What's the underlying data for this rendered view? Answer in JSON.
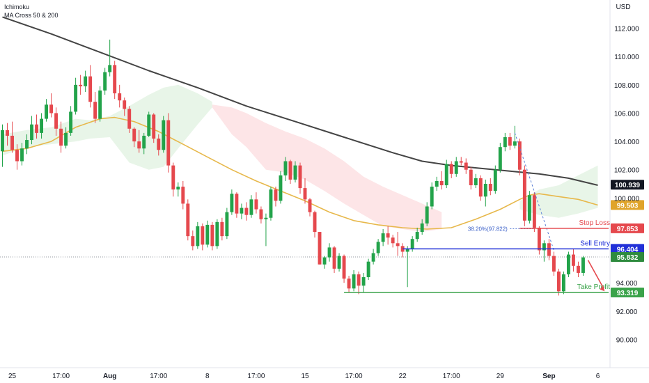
{
  "indicators": [
    "Ichimoku",
    "MA Cross 50 & 200"
  ],
  "chart_data": {
    "type": "candlestick",
    "currency": "USD",
    "ylim": [
      88.0,
      114.0
    ],
    "y_ticks": [
      "112.000",
      "110.000",
      "108.000",
      "106.000",
      "104.000",
      "102.000",
      "100.000",
      "94.000",
      "92.000",
      "90.000"
    ],
    "x_ticks": [
      {
        "label": "25",
        "bar": 2,
        "bold": false
      },
      {
        "label": "17:00",
        "bar": 12,
        "bold": false
      },
      {
        "label": "Aug",
        "bar": 22,
        "bold": true
      },
      {
        "label": "17:00",
        "bar": 32,
        "bold": false
      },
      {
        "label": "8",
        "bar": 42,
        "bold": false
      },
      {
        "label": "17:00",
        "bar": 52,
        "bold": false
      },
      {
        "label": "15",
        "bar": 62,
        "bold": false
      },
      {
        "label": "17:00",
        "bar": 72,
        "bold": false
      },
      {
        "label": "22",
        "bar": 82,
        "bold": false
      },
      {
        "label": "17:00",
        "bar": 92,
        "bold": false
      },
      {
        "label": "29",
        "bar": 102,
        "bold": false
      },
      {
        "label": "Sep",
        "bar": 112,
        "bold": true
      },
      {
        "label": "6",
        "bar": 122,
        "bold": false
      }
    ],
    "bar_count": 125,
    "candles": [
      [
        103.3,
        105.2,
        102.2,
        104.8
      ],
      [
        104.8,
        105.3,
        103.7,
        104.4
      ],
      [
        104.4,
        105.4,
        103.2,
        103.4
      ],
      [
        103.4,
        103.8,
        102.0,
        102.6
      ],
      [
        102.6,
        103.9,
        102.3,
        103.5
      ],
      [
        103.5,
        104.5,
        103.1,
        104.1
      ],
      [
        104.1,
        105.8,
        103.8,
        105.2
      ],
      [
        105.2,
        105.9,
        104.2,
        104.6
      ],
      [
        104.6,
        106.0,
        104.2,
        105.6
      ],
      [
        105.6,
        107.0,
        105.4,
        106.6
      ],
      [
        106.6,
        107.4,
        105.7,
        106.0
      ],
      [
        106.0,
        106.4,
        104.4,
        104.9
      ],
      [
        104.9,
        105.4,
        103.2,
        103.7
      ],
      [
        103.7,
        105.0,
        103.5,
        104.6
      ],
      [
        104.6,
        106.5,
        104.4,
        106.1
      ],
      [
        106.1,
        108.5,
        105.9,
        108.0
      ],
      [
        108.0,
        108.7,
        107.3,
        107.9
      ],
      [
        107.9,
        109.0,
        107.5,
        108.6
      ],
      [
        108.6,
        109.4,
        106.4,
        106.8
      ],
      [
        106.8,
        107.5,
        105.3,
        105.6
      ],
      [
        105.6,
        107.9,
        105.4,
        107.6
      ],
      [
        107.6,
        109.2,
        107.3,
        108.9
      ],
      [
        108.9,
        111.2,
        108.6,
        109.4
      ],
      [
        109.4,
        109.7,
        107.0,
        107.4
      ],
      [
        107.4,
        108.0,
        106.4,
        106.9
      ],
      [
        106.9,
        107.1,
        105.8,
        106.3
      ],
      [
        106.3,
        106.5,
        104.6,
        104.9
      ],
      [
        104.9,
        105.0,
        103.6,
        104.0
      ],
      [
        104.0,
        104.8,
        103.2,
        103.5
      ],
      [
        103.5,
        104.6,
        103.1,
        104.4
      ],
      [
        104.4,
        106.1,
        104.3,
        105.9
      ],
      [
        105.9,
        106.0,
        103.9,
        104.2
      ],
      [
        104.2,
        104.5,
        103.0,
        103.4
      ],
      [
        103.4,
        105.8,
        103.2,
        105.5
      ],
      [
        105.5,
        106.0,
        101.8,
        102.3
      ],
      [
        102.3,
        102.5,
        100.1,
        100.6
      ],
      [
        100.6,
        101.1,
        100.1,
        100.8
      ],
      [
        100.8,
        101.2,
        99.2,
        99.6
      ],
      [
        99.6,
        99.9,
        97.0,
        97.3
      ],
      [
        97.3,
        97.7,
        96.3,
        96.6
      ],
      [
        96.6,
        98.3,
        96.4,
        98.0
      ],
      [
        98.0,
        98.2,
        96.3,
        96.7
      ],
      [
        96.7,
        98.4,
        96.5,
        98.1
      ],
      [
        98.1,
        98.3,
        96.3,
        96.6
      ],
      [
        96.6,
        98.5,
        96.4,
        98.3
      ],
      [
        98.3,
        98.6,
        97.0,
        97.3
      ],
      [
        97.3,
        99.3,
        97.1,
        99.0
      ],
      [
        99.0,
        100.6,
        98.8,
        100.3
      ],
      [
        100.3,
        100.4,
        98.6,
        98.9
      ],
      [
        98.9,
        99.6,
        98.5,
        99.3
      ],
      [
        99.3,
        99.7,
        98.4,
        98.8
      ],
      [
        98.8,
        100.2,
        98.6,
        99.9
      ],
      [
        99.9,
        100.4,
        98.9,
        99.2
      ],
      [
        99.2,
        99.4,
        98.2,
        98.5
      ],
      [
        98.5,
        98.9,
        96.6,
        98.6
      ],
      [
        98.6,
        100.8,
        98.4,
        100.6
      ],
      [
        100.6,
        100.8,
        99.4,
        99.8
      ],
      [
        99.8,
        101.9,
        99.6,
        101.6
      ],
      [
        101.6,
        102.9,
        101.2,
        102.6
      ],
      [
        102.6,
        102.7,
        101.0,
        101.3
      ],
      [
        101.3,
        102.6,
        101.1,
        102.3
      ],
      [
        102.3,
        102.5,
        100.3,
        100.7
      ],
      [
        100.7,
        101.4,
        99.6,
        99.9
      ],
      [
        99.9,
        100.0,
        98.7,
        99.0
      ],
      [
        99.0,
        99.1,
        97.2,
        97.6
      ],
      [
        97.6,
        97.6,
        95.3,
        95.3
      ],
      [
        95.3,
        95.9,
        95.0,
        95.8
      ],
      [
        95.8,
        96.8,
        95.5,
        96.5
      ],
      [
        96.5,
        96.6,
        94.7,
        95.0
      ],
      [
        95.0,
        96.1,
        94.8,
        95.9
      ],
      [
        95.9,
        96.0,
        94.0,
        94.3
      ],
      [
        94.3,
        94.5,
        93.3,
        93.6
      ],
      [
        93.6,
        94.9,
        93.4,
        94.6
      ],
      [
        94.6,
        94.8,
        93.2,
        93.8
      ],
      [
        93.8,
        94.7,
        93.3,
        94.4
      ],
      [
        94.4,
        95.7,
        94.2,
        95.5
      ],
      [
        95.5,
        96.4,
        95.3,
        96.1
      ],
      [
        96.1,
        97.1,
        95.9,
        96.9
      ],
      [
        96.9,
        97.8,
        96.6,
        97.5
      ],
      [
        97.5,
        98.0,
        96.7,
        97.2
      ],
      [
        97.2,
        97.4,
        96.5,
        96.8
      ],
      [
        96.8,
        97.6,
        95.9,
        96.6
      ],
      [
        96.6,
        96.8,
        95.8,
        96.2
      ],
      [
        96.2,
        96.6,
        93.7,
        96.4
      ],
      [
        96.4,
        97.3,
        96.2,
        97.1
      ],
      [
        97.1,
        97.9,
        96.9,
        97.6
      ],
      [
        97.6,
        98.5,
        97.4,
        98.2
      ],
      [
        98.2,
        99.7,
        98.0,
        99.4
      ],
      [
        99.4,
        101.1,
        99.2,
        100.8
      ],
      [
        100.8,
        101.5,
        100.5,
        101.2
      ],
      [
        101.2,
        101.9,
        100.6,
        100.9
      ],
      [
        100.9,
        102.7,
        100.7,
        102.4
      ],
      [
        102.4,
        102.6,
        101.4,
        101.7
      ],
      [
        101.7,
        102.9,
        101.5,
        102.6
      ],
      [
        102.6,
        102.9,
        102.3,
        102.5
      ],
      [
        102.5,
        102.8,
        101.7,
        102.0
      ],
      [
        102.0,
        102.2,
        100.6,
        100.9
      ],
      [
        100.9,
        101.7,
        100.7,
        101.4
      ],
      [
        101.4,
        101.6,
        99.8,
        100.1
      ],
      [
        100.1,
        101.3,
        99.4,
        101.0
      ],
      [
        101.0,
        101.4,
        100.2,
        100.5
      ],
      [
        100.5,
        102.3,
        100.3,
        102.0
      ],
      [
        102.0,
        103.9,
        101.8,
        103.6
      ],
      [
        103.6,
        104.6,
        103.3,
        104.3
      ],
      [
        104.3,
        104.6,
        103.4,
        103.7
      ],
      [
        103.7,
        105.1,
        103.5,
        104.0
      ],
      [
        104.0,
        104.2,
        101.6,
        102.0
      ],
      [
        102.0,
        102.3,
        98.0,
        98.4
      ],
      [
        98.4,
        100.5,
        98.2,
        100.2
      ],
      [
        100.2,
        100.4,
        97.6,
        97.9
      ],
      [
        97.9,
        98.0,
        96.0,
        96.3
      ],
      [
        96.3,
        97.0,
        95.5,
        96.8
      ],
      [
        96.8,
        97.1,
        95.6,
        95.9
      ],
      [
        95.9,
        96.2,
        94.5,
        94.8
      ],
      [
        94.8,
        95.0,
        93.1,
        93.4
      ],
      [
        93.4,
        94.8,
        93.2,
        94.6
      ],
      [
        94.6,
        96.2,
        94.4,
        96.0
      ],
      [
        96.0,
        96.4,
        94.8,
        95.2
      ],
      [
        95.2,
        95.5,
        94.4,
        94.7
      ],
      [
        94.7,
        95.9,
        94.5,
        95.8
      ]
    ],
    "ma50": [
      [
        0,
        103.3
      ],
      [
        5,
        103.5
      ],
      [
        10,
        104.0
      ],
      [
        15,
        105.0
      ],
      [
        20,
        105.6
      ],
      [
        23,
        105.7
      ],
      [
        27,
        105.4
      ],
      [
        32,
        104.7
      ],
      [
        37,
        103.8
      ],
      [
        42,
        102.9
      ],
      [
        47,
        102.0
      ],
      [
        52,
        101.2
      ],
      [
        57,
        100.5
      ],
      [
        62,
        99.8
      ],
      [
        67,
        99.0
      ],
      [
        72,
        98.4
      ],
      [
        77,
        98.1
      ],
      [
        82,
        97.9
      ],
      [
        87,
        97.8
      ],
      [
        92,
        97.9
      ],
      [
        97,
        98.5
      ],
      [
        102,
        99.2
      ],
      [
        106,
        99.9
      ],
      [
        108,
        100.2
      ],
      [
        110,
        100.3
      ],
      [
        114,
        100.1
      ],
      [
        118,
        99.9
      ],
      [
        122,
        99.5
      ]
    ],
    "ma200": [
      [
        0,
        112.8
      ],
      [
        10,
        111.6
      ],
      [
        20,
        110.3
      ],
      [
        30,
        109.0
      ],
      [
        40,
        107.8
      ],
      [
        50,
        106.5
      ],
      [
        60,
        105.4
      ],
      [
        70,
        104.3
      ],
      [
        80,
        103.2
      ],
      [
        86,
        102.6
      ],
      [
        92,
        102.3
      ],
      [
        98,
        102.1
      ],
      [
        104,
        101.9
      ],
      [
        110,
        101.7
      ],
      [
        116,
        101.4
      ],
      [
        122,
        100.9
      ]
    ],
    "cloud_green": [
      [
        0,
        104.5,
        103.0
      ],
      [
        5,
        104.8,
        103.6
      ],
      [
        10,
        105.0,
        103.8
      ],
      [
        15,
        105.6,
        104.0
      ],
      [
        18,
        105.5,
        104.2
      ],
      [
        22,
        105.8,
        104.3
      ],
      [
        26,
        106.5,
        102.5
      ],
      [
        30,
        107.3,
        102.0
      ],
      [
        33,
        107.8,
        102.2
      ],
      [
        36,
        108.0,
        103.5
      ],
      [
        40,
        107.4,
        105.2
      ],
      [
        43,
        106.8,
        106.4
      ]
    ],
    "cloud_red": [
      [
        43,
        106.6,
        106.4
      ],
      [
        47,
        106.4,
        104.5
      ],
      [
        50,
        106.0,
        103.6
      ],
      [
        54,
        105.3,
        102.0
      ],
      [
        58,
        104.7,
        101.8
      ],
      [
        62,
        104.2,
        101.3
      ],
      [
        66,
        103.5,
        100.5
      ],
      [
        70,
        102.6,
        99.6
      ],
      [
        74,
        101.5,
        98.8
      ],
      [
        78,
        100.8,
        98.0
      ],
      [
        82,
        100.2,
        97.8
      ],
      [
        86,
        99.6,
        97.6
      ],
      [
        90,
        99.0,
        97.8
      ]
    ],
    "cloud_green_right": [
      [
        106,
        99.8,
        99.2
      ],
      [
        110,
        100.6,
        98.8
      ],
      [
        114,
        100.9,
        98.6
      ],
      [
        118,
        101.6,
        98.9
      ],
      [
        122,
        102.3,
        99.3
      ]
    ],
    "fib_label": "38.20%(97.822)",
    "fib_value": 97.822,
    "levels": [
      {
        "name": "Stop Loss",
        "value": 97.853,
        "label": "97.853",
        "color": "#e5484d"
      },
      {
        "name": "Sell Entry",
        "value": 96.404,
        "label": "96.404",
        "color": "#2130d8"
      },
      {
        "name": "Take Profit",
        "value": 93.319,
        "label": "93.319",
        "color": "#3aa34a"
      }
    ],
    "price_labels": [
      {
        "value": 100.939,
        "label": "100.939",
        "bg": "#131722"
      },
      {
        "value": 99.503,
        "label": "99.503",
        "bg": "#e0a42a"
      },
      {
        "value": 95.832,
        "label": "95.832",
        "bg": "#2e8b3e"
      }
    ],
    "last_price": 95.832,
    "colors": {
      "up": "#22a34a",
      "down": "#e5484d",
      "ma50": "#e7b84b",
      "ma200": "#444444"
    }
  }
}
